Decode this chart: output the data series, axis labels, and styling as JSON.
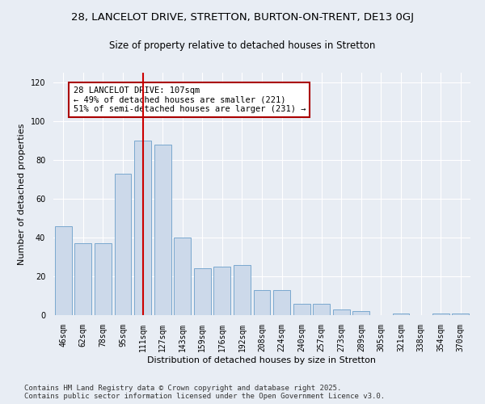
{
  "title1": "28, LANCELOT DRIVE, STRETTON, BURTON-ON-TRENT, DE13 0GJ",
  "title2": "Size of property relative to detached houses in Stretton",
  "xlabel": "Distribution of detached houses by size in Stretton",
  "ylabel": "Number of detached properties",
  "categories": [
    "46sqm",
    "62sqm",
    "78sqm",
    "95sqm",
    "111sqm",
    "127sqm",
    "143sqm",
    "159sqm",
    "176sqm",
    "192sqm",
    "208sqm",
    "224sqm",
    "240sqm",
    "257sqm",
    "273sqm",
    "289sqm",
    "305sqm",
    "321sqm",
    "338sqm",
    "354sqm",
    "370sqm"
  ],
  "values": [
    46,
    37,
    37,
    73,
    90,
    88,
    40,
    24,
    25,
    26,
    13,
    13,
    6,
    6,
    3,
    2,
    0,
    1,
    0,
    1,
    1
  ],
  "bar_color": "#ccd9ea",
  "bar_edge_color": "#7aa8cf",
  "red_line_index": 4,
  "annotation_text": "28 LANCELOT DRIVE: 107sqm\n← 49% of detached houses are smaller (221)\n51% of semi-detached houses are larger (231) →",
  "annotation_box_color": "white",
  "annotation_box_edge": "#aa0000",
  "ylim": [
    0,
    125
  ],
  "yticks": [
    0,
    20,
    40,
    60,
    80,
    100,
    120
  ],
  "background_color": "#e8edf4",
  "plot_bg_color": "#e8edf4",
  "footer": "Contains HM Land Registry data © Crown copyright and database right 2025.\nContains public sector information licensed under the Open Government Licence v3.0.",
  "title1_fontsize": 9.5,
  "title2_fontsize": 8.5,
  "xlabel_fontsize": 8,
  "ylabel_fontsize": 8,
  "tick_fontsize": 7,
  "footer_fontsize": 6.5,
  "ann_fontsize": 7.5
}
